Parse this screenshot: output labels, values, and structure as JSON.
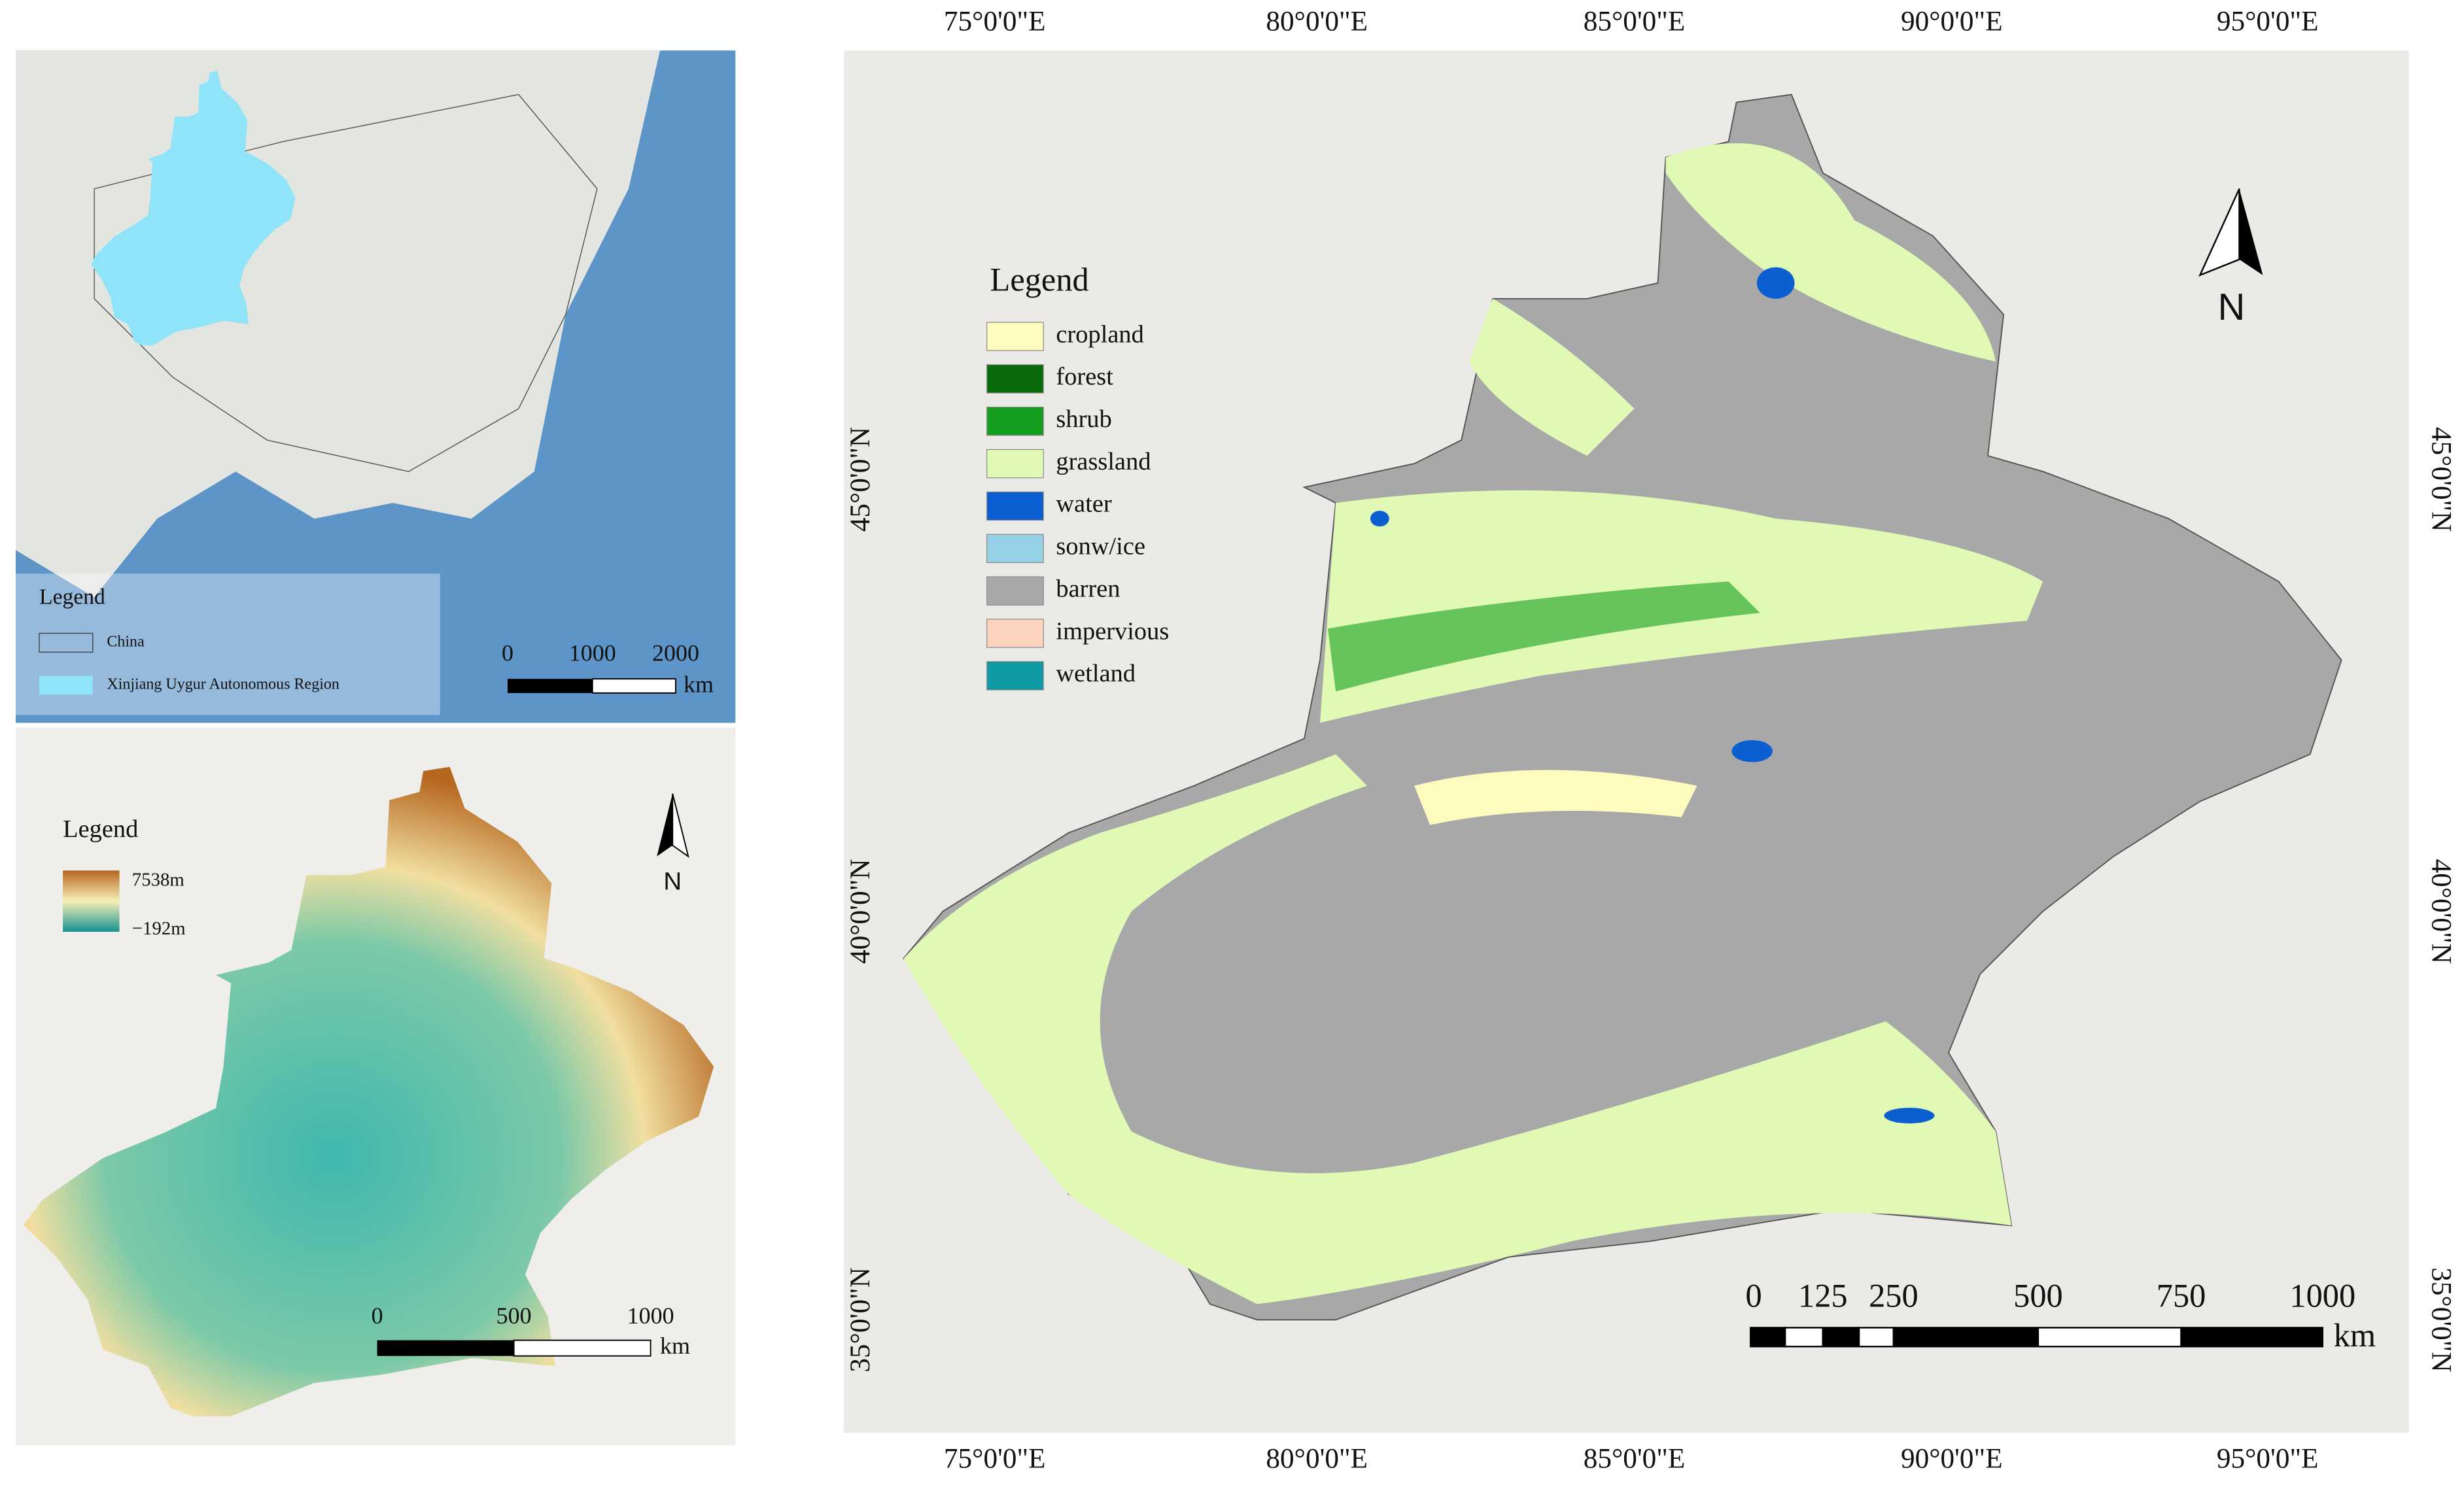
{
  "panel_a": {
    "legend": {
      "title": "Legend",
      "items": [
        "China",
        "Xinjiang Uygur Autonomous Region"
      ]
    },
    "scale_bar": {
      "labels": [
        "0",
        "1000",
        "2000"
      ],
      "unit": "km"
    }
  },
  "panel_b": {
    "legend": {
      "title": "Legend",
      "max": "7538m",
      "min": "−192m"
    },
    "north": "N",
    "scale_bar": {
      "labels": [
        "0",
        "500",
        "1000"
      ],
      "unit": "km"
    }
  },
  "panel_c": {
    "longitude_labels": [
      "75°0'0\"E",
      "80°0'0\"E",
      "85°0'0\"E",
      "90°0'0\"E",
      "95°0'0\"E"
    ],
    "latitude_labels": [
      "45°0'0\"N",
      "40°0'0\"N",
      "35°0'0\"N"
    ],
    "legend": {
      "title": "Legend",
      "items": [
        {
          "name": "cropland",
          "color": "#fefbbf"
        },
        {
          "name": "forest",
          "color": "#0a6b0a"
        },
        {
          "name": "shrub",
          "color": "#14a01e"
        },
        {
          "name": "grassland",
          "color": "#e0f9b4"
        },
        {
          "name": "water",
          "color": "#0b5fd0"
        },
        {
          "name": "sonw/ice",
          "color": "#96d0e6"
        },
        {
          "name": "barren",
          "color": "#a8a8a8"
        },
        {
          "name": "impervious",
          "color": "#fdd5bf"
        },
        {
          "name": "wetland",
          "color": "#109aa3"
        }
      ]
    },
    "north": "N",
    "scale_bar": {
      "labels": [
        "0",
        "125",
        "250",
        "500",
        "750",
        "1000"
      ],
      "unit": "km"
    }
  }
}
